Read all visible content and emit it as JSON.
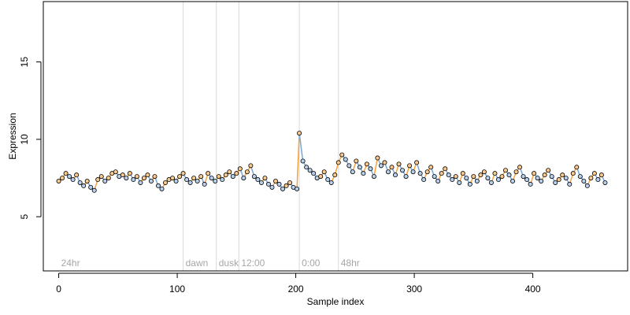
{
  "chart_data": {
    "type": "scatter",
    "xlabel": "Sample index",
    "ylabel": "Expression",
    "xlim": [
      -13,
      480
    ],
    "ylim": [
      1.5,
      18.9
    ],
    "x_ticks": [
      0,
      100,
      200,
      300,
      400
    ],
    "y_ticks": [
      5,
      10,
      15
    ],
    "grid": false,
    "colors": {
      "up": "#f5a23c",
      "down": "#7aa6d8",
      "vline": "#d9d9d9",
      "annotation": "#a6a6a6"
    },
    "annotations": [
      {
        "x": 0,
        "label": "24hr"
      },
      {
        "x": 105,
        "label": "dawn"
      },
      {
        "x": 133,
        "label": "dusk"
      },
      {
        "x": 152,
        "label": "12:00"
      },
      {
        "x": 203,
        "label": "0:00"
      },
      {
        "x": 236,
        "label": "48hr"
      }
    ],
    "vlines": [
      105,
      133,
      152,
      203,
      236
    ],
    "x": [
      0,
      3,
      6,
      9,
      12,
      15,
      18,
      21,
      24,
      27,
      30,
      33,
      36,
      39,
      42,
      45,
      48,
      51,
      54,
      57,
      60,
      63,
      66,
      69,
      72,
      75,
      78,
      81,
      84,
      87,
      90,
      93,
      96,
      99,
      102,
      105,
      108,
      111,
      114,
      117,
      120,
      123,
      126,
      129,
      132,
      135,
      138,
      141,
      144,
      147,
      150,
      153,
      156,
      159,
      162,
      165,
      168,
      171,
      174,
      177,
      180,
      183,
      186,
      189,
      192,
      195,
      198,
      201,
      203,
      206,
      209,
      212,
      215,
      218,
      221,
      224,
      227,
      230,
      233,
      236,
      239,
      242,
      245,
      248,
      251,
      254,
      257,
      260,
      263,
      266,
      269,
      272,
      275,
      278,
      281,
      284,
      287,
      290,
      293,
      296,
      299,
      302,
      305,
      308,
      311,
      314,
      317,
      320,
      323,
      326,
      329,
      332,
      335,
      338,
      341,
      344,
      347,
      350,
      353,
      356,
      359,
      362,
      365,
      368,
      371,
      374,
      377,
      380,
      383,
      386,
      389,
      392,
      395,
      398,
      401,
      404,
      407,
      410,
      413,
      416,
      419,
      422,
      425,
      428,
      431,
      434,
      437,
      440,
      443,
      446,
      449,
      452,
      455,
      458,
      461
    ],
    "y": [
      7.3,
      7.5,
      7.8,
      7.6,
      7.4,
      7.7,
      7.2,
      7.0,
      7.3,
      6.9,
      6.7,
      7.4,
      7.6,
      7.3,
      7.5,
      7.8,
      7.9,
      7.6,
      7.7,
      7.5,
      7.8,
      7.4,
      7.6,
      7.2,
      7.5,
      7.7,
      7.3,
      7.6,
      7.0,
      6.8,
      7.2,
      7.4,
      7.5,
      7.3,
      7.6,
      7.8,
      7.4,
      7.2,
      7.5,
      7.3,
      7.6,
      7.1,
      7.8,
      7.5,
      7.3,
      7.6,
      7.4,
      7.7,
      7.9,
      7.6,
      7.8,
      8.1,
      7.5,
      7.9,
      8.3,
      7.6,
      7.4,
      7.2,
      7.5,
      7.1,
      6.9,
      7.3,
      7.1,
      6.8,
      7.0,
      7.2,
      6.9,
      6.8,
      10.4,
      8.6,
      8.2,
      8.0,
      7.8,
      7.5,
      7.6,
      7.9,
      7.4,
      7.2,
      7.7,
      8.5,
      9.0,
      8.7,
      8.3,
      7.9,
      8.6,
      8.2,
      7.8,
      8.4,
      8.1,
      7.6,
      8.8,
      8.3,
      8.5,
      7.9,
      8.2,
      7.7,
      8.4,
      8.0,
      7.6,
      8.3,
      7.9,
      8.5,
      7.8,
      7.4,
      7.9,
      8.2,
      7.6,
      7.3,
      7.8,
      8.1,
      7.7,
      7.4,
      7.6,
      7.2,
      7.8,
      7.5,
      7.1,
      7.6,
      7.3,
      7.7,
      7.9,
      7.5,
      7.2,
      7.8,
      7.4,
      7.6,
      8.0,
      7.7,
      7.3,
      7.9,
      8.2,
      7.6,
      7.4,
      7.1,
      7.8,
      7.5,
      7.3,
      7.7,
      8.0,
      7.6,
      7.2,
      7.4,
      7.7,
      7.5,
      7.1,
      7.8,
      8.2,
      7.6,
      7.3,
      7.0,
      7.5,
      7.8,
      7.4,
      7.7,
      7.2
    ]
  }
}
